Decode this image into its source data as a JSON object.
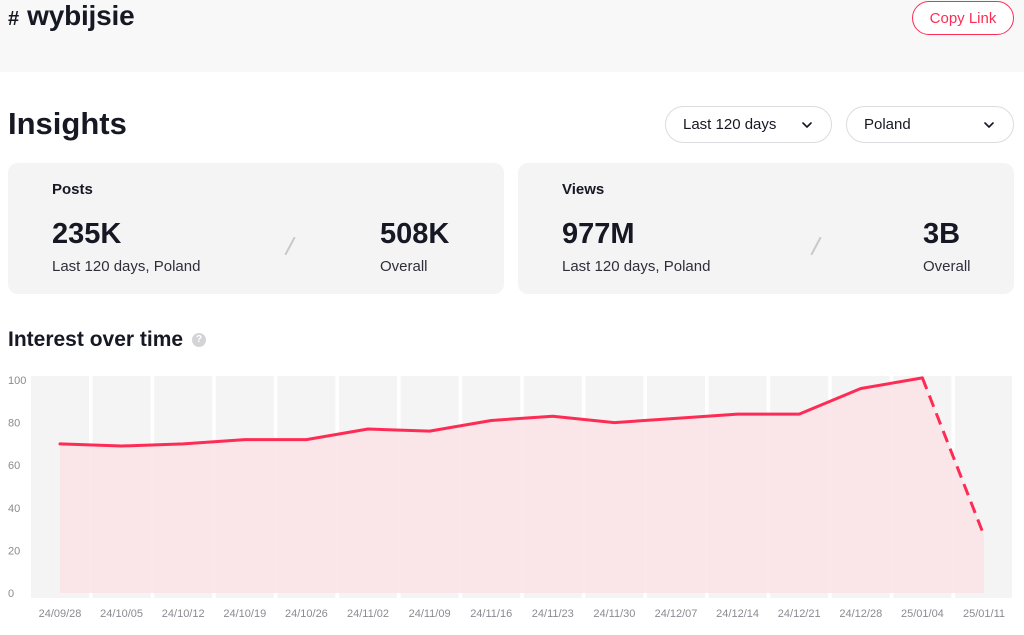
{
  "header": {
    "hash_symbol": "#",
    "tag_name": "wybijsie",
    "copy_link_label": "Copy Link"
  },
  "insights": {
    "title": "Insights",
    "period_select": "Last 120 days",
    "region_select": "Poland"
  },
  "posts_card": {
    "label": "Posts",
    "period_value": "235K",
    "period_caption": "Last 120 days, Poland",
    "overall_value": "508K",
    "overall_caption": "Overall"
  },
  "views_card": {
    "label": "Views",
    "period_value": "977M",
    "period_caption": "Last 120 days, Poland",
    "overall_value": "3B",
    "overall_caption": "Overall"
  },
  "interest": {
    "title": "Interest over time",
    "help_icon": "question-circle-icon"
  },
  "colors": {
    "accent": "#fe2c55",
    "area_fill": "#fbe4e8",
    "column_bg": "#f4f4f5"
  },
  "chart_data": {
    "type": "line",
    "categories": [
      "24/09/28",
      "24/10/05",
      "24/10/12",
      "24/10/19",
      "24/10/26",
      "24/11/02",
      "24/11/09",
      "24/11/16",
      "24/11/23",
      "24/11/30",
      "24/12/07",
      "24/12/14",
      "24/12/21",
      "24/12/28",
      "25/01/04",
      "25/01/11"
    ],
    "values": [
      70,
      69,
      70,
      72,
      72,
      77,
      76,
      81,
      83,
      80,
      82,
      84,
      84,
      96,
      101,
      27
    ],
    "dashed_last_segment": true,
    "yticks": [
      0,
      20,
      40,
      60,
      80,
      100
    ],
    "ylim": [
      0,
      100
    ],
    "grid": false,
    "area_fill": true
  }
}
